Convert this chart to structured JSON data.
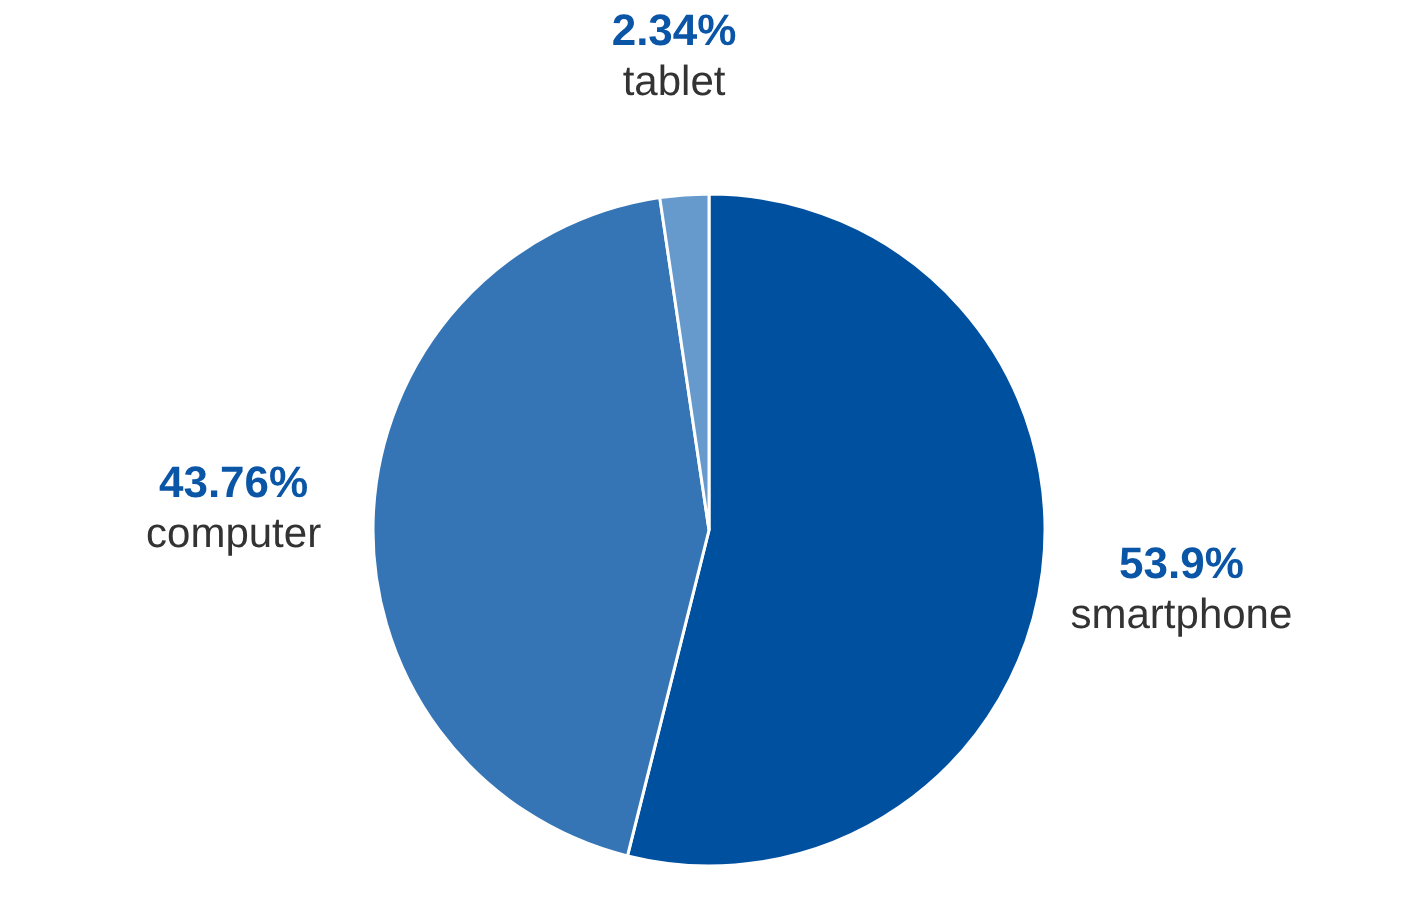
{
  "chart_data": {
    "type": "pie",
    "categories": [
      "smartphone",
      "computer",
      "tablet"
    ],
    "values": [
      53.9,
      43.76,
      2.34
    ],
    "colors": [
      "#0050a0",
      "#3575b5",
      "#6699cc"
    ],
    "value_labels": [
      "53.9%",
      "43.76%",
      "2.34%"
    ]
  }
}
